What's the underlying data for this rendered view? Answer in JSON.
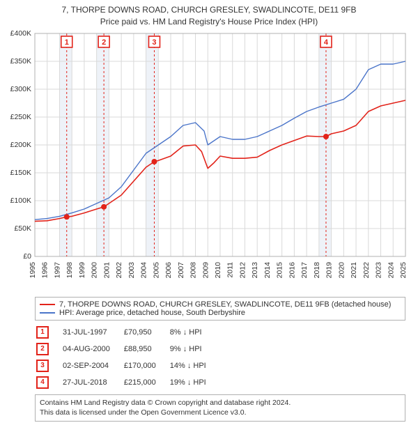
{
  "title_line1": "7, THORPE DOWNS ROAD, CHURCH GRESLEY, SWADLINCOTE, DE11 9FB",
  "title_line2": "Price paid vs. HM Land Registry's House Price Index (HPI)",
  "chart": {
    "type": "line",
    "x_years": [
      1995,
      1996,
      1997,
      1998,
      1999,
      2000,
      2001,
      2002,
      2003,
      2004,
      2005,
      2006,
      2007,
      2008,
      2009,
      2010,
      2011,
      2012,
      2013,
      2014,
      2015,
      2016,
      2017,
      2018,
      2019,
      2020,
      2021,
      2022,
      2023,
      2024,
      2025
    ],
    "xlim": [
      1995,
      2025
    ],
    "ylim": [
      0,
      400000
    ],
    "ytick_step": 50000,
    "ytick_labels": [
      "£0",
      "£50K",
      "£100K",
      "£150K",
      "£200K",
      "£250K",
      "£300K",
      "£350K",
      "£400K"
    ],
    "grid_color": "#d9d9d9",
    "background_color": "#ffffff",
    "shade_color": "#eef2f8",
    "series": [
      {
        "id": "price_paid",
        "label": "7, THORPE DOWNS ROAD, CHURCH GRESLEY, SWADLINCOTE, DE11 9FB (detached house)",
        "color": "#e2231a",
        "width": 1.6,
        "points": [
          [
            1995.0,
            63000
          ],
          [
            1996.0,
            64000
          ],
          [
            1997.0,
            68000
          ],
          [
            1997.58,
            70950
          ],
          [
            1998.0,
            72000
          ],
          [
            1999.0,
            78000
          ],
          [
            2000.0,
            85000
          ],
          [
            2000.59,
            88950
          ],
          [
            2001.0,
            95000
          ],
          [
            2002.0,
            110000
          ],
          [
            2003.0,
            135000
          ],
          [
            2004.0,
            160000
          ],
          [
            2004.67,
            170000
          ],
          [
            2005.0,
            172000
          ],
          [
            2006.0,
            180000
          ],
          [
            2007.0,
            198000
          ],
          [
            2008.0,
            200000
          ],
          [
            2008.5,
            188000
          ],
          [
            2009.0,
            158000
          ],
          [
            2009.5,
            168000
          ],
          [
            2010.0,
            180000
          ],
          [
            2011.0,
            176000
          ],
          [
            2012.0,
            176000
          ],
          [
            2013.0,
            178000
          ],
          [
            2014.0,
            190000
          ],
          [
            2015.0,
            200000
          ],
          [
            2016.0,
            208000
          ],
          [
            2017.0,
            216000
          ],
          [
            2018.0,
            215000
          ],
          [
            2018.57,
            215000
          ],
          [
            2019.0,
            220000
          ],
          [
            2020.0,
            225000
          ],
          [
            2021.0,
            235000
          ],
          [
            2022.0,
            260000
          ],
          [
            2023.0,
            270000
          ],
          [
            2024.0,
            275000
          ],
          [
            2025.0,
            280000
          ]
        ]
      },
      {
        "id": "hpi",
        "label": "HPI: Average price, detached house, South Derbyshire",
        "color": "#4a74c9",
        "width": 1.4,
        "points": [
          [
            1995.0,
            66000
          ],
          [
            1996.0,
            68000
          ],
          [
            1997.0,
            72000
          ],
          [
            1998.0,
            78000
          ],
          [
            1999.0,
            85000
          ],
          [
            2000.0,
            95000
          ],
          [
            2001.0,
            105000
          ],
          [
            2002.0,
            125000
          ],
          [
            2003.0,
            155000
          ],
          [
            2004.0,
            185000
          ],
          [
            2005.0,
            200000
          ],
          [
            2006.0,
            215000
          ],
          [
            2007.0,
            235000
          ],
          [
            2008.0,
            240000
          ],
          [
            2008.7,
            225000
          ],
          [
            2009.0,
            200000
          ],
          [
            2010.0,
            215000
          ],
          [
            2011.0,
            210000
          ],
          [
            2012.0,
            210000
          ],
          [
            2013.0,
            215000
          ],
          [
            2014.0,
            225000
          ],
          [
            2015.0,
            235000
          ],
          [
            2016.0,
            248000
          ],
          [
            2017.0,
            260000
          ],
          [
            2018.0,
            268000
          ],
          [
            2019.0,
            275000
          ],
          [
            2020.0,
            282000
          ],
          [
            2021.0,
            300000
          ],
          [
            2022.0,
            335000
          ],
          [
            2023.0,
            345000
          ],
          [
            2024.0,
            345000
          ],
          [
            2025.0,
            350000
          ]
        ]
      }
    ],
    "event_lines": {
      "color": "#e2231a",
      "dash": "3,3",
      "width": 1,
      "marker_border": "#e2231a",
      "events": [
        {
          "n": "1",
          "x": 1997.58,
          "y": 70950,
          "shade": [
            1997,
            1998
          ]
        },
        {
          "n": "2",
          "x": 2000.59,
          "y": 88950,
          "shade": [
            2000,
            2001
          ]
        },
        {
          "n": "3",
          "x": 2004.67,
          "y": 170000,
          "shade": [
            2004,
            2005
          ]
        },
        {
          "n": "4",
          "x": 2018.57,
          "y": 215000,
          "shade": [
            2018,
            2019
          ]
        }
      ]
    }
  },
  "legend": {
    "items": [
      {
        "color": "#e2231a",
        "text": "7, THORPE DOWNS ROAD, CHURCH GRESLEY, SWADLINCOTE, DE11 9FB (detached house)"
      },
      {
        "color": "#4a74c9",
        "text": "HPI: Average price, detached house, South Derbyshire"
      }
    ]
  },
  "events_table": [
    {
      "n": "1",
      "date": "31-JUL-1997",
      "price": "£70,950",
      "delta": "8% ↓ HPI"
    },
    {
      "n": "2",
      "date": "04-AUG-2000",
      "price": "£88,950",
      "delta": "9% ↓ HPI"
    },
    {
      "n": "3",
      "date": "02-SEP-2004",
      "price": "£170,000",
      "delta": "14% ↓ HPI"
    },
    {
      "n": "4",
      "date": "27-JUL-2018",
      "price": "£215,000",
      "delta": "19% ↓ HPI"
    }
  ],
  "footer_line1": "Contains HM Land Registry data © Crown copyright and database right 2024.",
  "footer_line2": "This data is licensed under the Open Government Licence v3.0."
}
